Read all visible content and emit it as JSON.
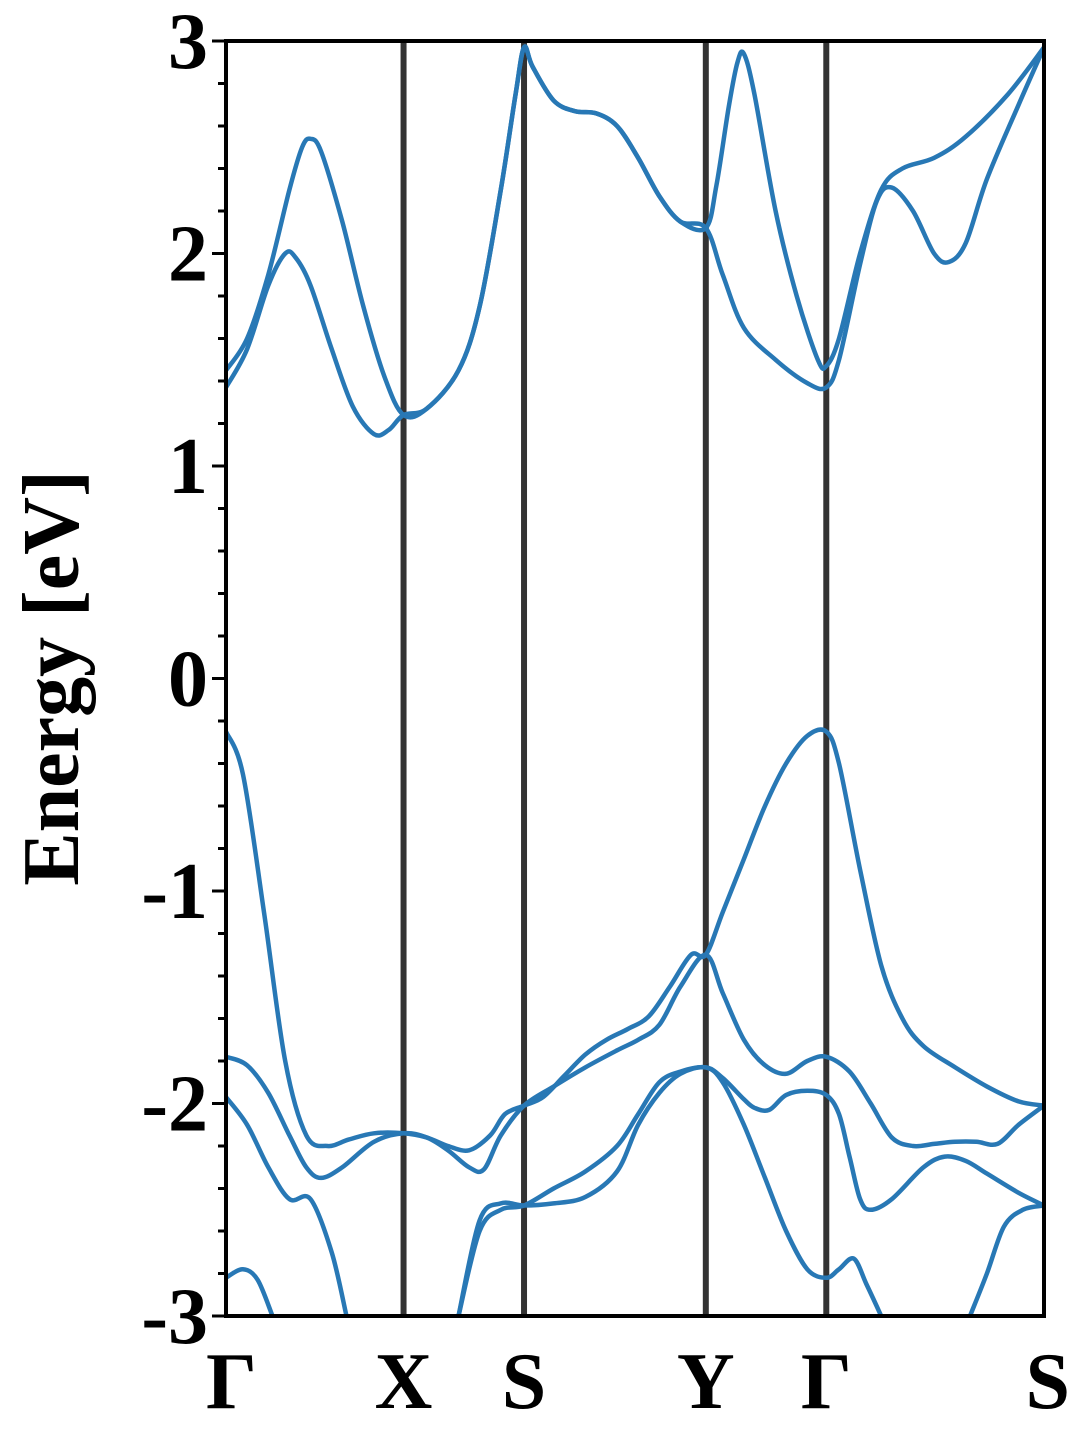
{
  "chart_data": {
    "type": "line",
    "title": "",
    "xlabel": "",
    "ylabel": "Energy [eV]",
    "ylim": [
      -3,
      3
    ],
    "yticks": [
      -3,
      -2,
      -1,
      0,
      1,
      2,
      3
    ],
    "ytick_labels": [
      "-3",
      "-2",
      "-1",
      "0",
      "1",
      "2",
      "3"
    ],
    "xlim": [
      0,
      3.87
    ],
    "kpoints": [
      {
        "label": "Γ",
        "x": 0.0
      },
      {
        "label": "X",
        "x": 0.84
      },
      {
        "label": "S",
        "x": 1.41
      },
      {
        "label": "Y",
        "x": 2.27
      },
      {
        "label": "Γ",
        "x": 2.84
      },
      {
        "label": "S",
        "x": 3.87
      }
    ],
    "grid": false,
    "line_color": "#2878b5",
    "kline_color": "#333333",
    "series": [
      {
        "points": [
          [
            0.0,
            1.45
          ],
          [
            0.1,
            1.6
          ],
          [
            0.2,
            1.9
          ],
          [
            0.3,
            2.3
          ],
          [
            0.36,
            2.5
          ],
          [
            0.4,
            2.54
          ],
          [
            0.45,
            2.48
          ],
          [
            0.55,
            2.15
          ],
          [
            0.65,
            1.75
          ],
          [
            0.75,
            1.42
          ],
          [
            0.84,
            1.24
          ],
          [
            0.95,
            1.27
          ],
          [
            1.1,
            1.45
          ],
          [
            1.2,
            1.75
          ],
          [
            1.3,
            2.3
          ],
          [
            1.37,
            2.75
          ],
          [
            1.41,
            2.97
          ],
          [
            1.45,
            2.88
          ],
          [
            1.55,
            2.72
          ],
          [
            1.65,
            2.67
          ],
          [
            1.75,
            2.66
          ],
          [
            1.85,
            2.6
          ],
          [
            1.95,
            2.45
          ],
          [
            2.05,
            2.27
          ],
          [
            2.15,
            2.15
          ],
          [
            2.27,
            2.12
          ],
          [
            2.32,
            2.32
          ],
          [
            2.38,
            2.7
          ],
          [
            2.42,
            2.9
          ],
          [
            2.45,
            2.94
          ],
          [
            2.5,
            2.75
          ],
          [
            2.6,
            2.2
          ],
          [
            2.7,
            1.8
          ],
          [
            2.8,
            1.5
          ],
          [
            2.84,
            1.47
          ],
          [
            2.9,
            1.6
          ],
          [
            3.0,
            2.0
          ],
          [
            3.1,
            2.3
          ],
          [
            3.2,
            2.4
          ],
          [
            3.35,
            2.45
          ],
          [
            3.5,
            2.55
          ],
          [
            3.7,
            2.75
          ],
          [
            3.87,
            2.97
          ]
        ]
      },
      {
        "points": [
          [
            0.0,
            1.37
          ],
          [
            0.1,
            1.55
          ],
          [
            0.2,
            1.85
          ],
          [
            0.28,
            2.0
          ],
          [
            0.33,
            1.98
          ],
          [
            0.4,
            1.85
          ],
          [
            0.5,
            1.55
          ],
          [
            0.6,
            1.28
          ],
          [
            0.7,
            1.15
          ],
          [
            0.77,
            1.17
          ],
          [
            0.84,
            1.24
          ],
          [
            0.95,
            1.27
          ],
          [
            1.1,
            1.45
          ],
          [
            1.2,
            1.75
          ],
          [
            1.3,
            2.3
          ],
          [
            1.37,
            2.75
          ],
          [
            1.41,
            2.97
          ],
          [
            1.45,
            2.88
          ],
          [
            1.55,
            2.72
          ],
          [
            1.65,
            2.67
          ],
          [
            1.75,
            2.66
          ],
          [
            1.85,
            2.6
          ],
          [
            1.95,
            2.45
          ],
          [
            2.05,
            2.27
          ],
          [
            2.15,
            2.15
          ],
          [
            2.27,
            2.12
          ],
          [
            2.35,
            1.9
          ],
          [
            2.45,
            1.65
          ],
          [
            2.6,
            1.5
          ],
          [
            2.75,
            1.39
          ],
          [
            2.84,
            1.37
          ],
          [
            2.9,
            1.5
          ],
          [
            3.0,
            1.95
          ],
          [
            3.08,
            2.25
          ],
          [
            3.15,
            2.31
          ],
          [
            3.25,
            2.2
          ],
          [
            3.35,
            2.0
          ],
          [
            3.42,
            1.96
          ],
          [
            3.5,
            2.05
          ],
          [
            3.6,
            2.35
          ],
          [
            3.75,
            2.7
          ],
          [
            3.87,
            2.97
          ]
        ]
      },
      {
        "points": [
          [
            0.0,
            -0.25
          ],
          [
            0.08,
            -0.45
          ],
          [
            0.18,
            -1.1
          ],
          [
            0.28,
            -1.8
          ],
          [
            0.38,
            -2.15
          ],
          [
            0.48,
            -2.2
          ],
          [
            0.58,
            -2.17
          ],
          [
            0.7,
            -2.14
          ],
          [
            0.84,
            -2.14
          ],
          [
            0.95,
            -2.16
          ],
          [
            1.05,
            -2.2
          ],
          [
            1.15,
            -2.22
          ],
          [
            1.25,
            -2.15
          ],
          [
            1.32,
            -2.05
          ],
          [
            1.41,
            -2.01
          ],
          [
            1.5,
            -1.97
          ],
          [
            1.6,
            -1.87
          ],
          [
            1.7,
            -1.77
          ],
          [
            1.8,
            -1.7
          ],
          [
            1.9,
            -1.65
          ],
          [
            2.0,
            -1.59
          ],
          [
            2.1,
            -1.45
          ],
          [
            2.2,
            -1.3
          ],
          [
            2.27,
            -1.3
          ],
          [
            2.35,
            -1.1
          ],
          [
            2.45,
            -0.85
          ],
          [
            2.55,
            -0.6
          ],
          [
            2.65,
            -0.4
          ],
          [
            2.75,
            -0.27
          ],
          [
            2.84,
            -0.25
          ],
          [
            2.9,
            -0.4
          ],
          [
            3.0,
            -0.9
          ],
          [
            3.1,
            -1.35
          ],
          [
            3.2,
            -1.6
          ],
          [
            3.3,
            -1.73
          ],
          [
            3.45,
            -1.83
          ],
          [
            3.6,
            -1.92
          ],
          [
            3.75,
            -1.99
          ],
          [
            3.87,
            -2.01
          ]
        ]
      },
      {
        "points": [
          [
            0.0,
            -1.78
          ],
          [
            0.1,
            -1.82
          ],
          [
            0.2,
            -1.95
          ],
          [
            0.3,
            -2.15
          ],
          [
            0.38,
            -2.3
          ],
          [
            0.45,
            -2.35
          ],
          [
            0.55,
            -2.3
          ],
          [
            0.7,
            -2.18
          ],
          [
            0.84,
            -2.14
          ],
          [
            0.95,
            -2.16
          ],
          [
            1.05,
            -2.22
          ],
          [
            1.15,
            -2.3
          ],
          [
            1.22,
            -2.31
          ],
          [
            1.3,
            -2.15
          ],
          [
            1.41,
            -2.01
          ],
          [
            1.55,
            -1.92
          ],
          [
            1.7,
            -1.83
          ],
          [
            1.85,
            -1.75
          ],
          [
            1.95,
            -1.7
          ],
          [
            2.05,
            -1.63
          ],
          [
            2.15,
            -1.45
          ],
          [
            2.27,
            -1.3
          ],
          [
            2.35,
            -1.48
          ],
          [
            2.45,
            -1.7
          ],
          [
            2.55,
            -1.82
          ],
          [
            2.65,
            -1.86
          ],
          [
            2.75,
            -1.8
          ],
          [
            2.84,
            -1.78
          ],
          [
            2.95,
            -1.85
          ],
          [
            3.05,
            -2.0
          ],
          [
            3.15,
            -2.16
          ],
          [
            3.25,
            -2.2
          ],
          [
            3.35,
            -2.19
          ],
          [
            3.45,
            -2.18
          ],
          [
            3.55,
            -2.18
          ],
          [
            3.65,
            -2.19
          ],
          [
            3.75,
            -2.1
          ],
          [
            3.87,
            -2.01
          ]
        ]
      },
      {
        "points": [
          [
            0.0,
            -1.97
          ],
          [
            0.1,
            -2.1
          ],
          [
            0.2,
            -2.3
          ],
          [
            0.3,
            -2.45
          ],
          [
            0.4,
            -2.45
          ],
          [
            0.5,
            -2.7
          ],
          [
            0.57,
            -3.0
          ]
        ]
      },
      {
        "points": [
          [
            1.1,
            -3.0
          ],
          [
            1.2,
            -2.6
          ],
          [
            1.3,
            -2.5
          ],
          [
            1.41,
            -2.48
          ],
          [
            1.55,
            -2.4
          ],
          [
            1.7,
            -2.32
          ],
          [
            1.85,
            -2.2
          ],
          [
            1.95,
            -2.05
          ],
          [
            2.05,
            -1.9
          ],
          [
            2.15,
            -1.85
          ],
          [
            2.27,
            -1.83
          ],
          [
            2.35,
            -1.88
          ],
          [
            2.45,
            -1.98
          ],
          [
            2.5,
            -2.02
          ],
          [
            2.57,
            -2.03
          ],
          [
            2.65,
            -1.96
          ],
          [
            2.75,
            -1.94
          ],
          [
            2.84,
            -1.96
          ],
          [
            2.9,
            -2.05
          ],
          [
            2.95,
            -2.25
          ],
          [
            3.0,
            -2.45
          ],
          [
            3.05,
            -2.5
          ],
          [
            3.15,
            -2.45
          ],
          [
            3.3,
            -2.3
          ],
          [
            3.4,
            -2.25
          ],
          [
            3.5,
            -2.27
          ],
          [
            3.6,
            -2.33
          ],
          [
            3.75,
            -2.42
          ],
          [
            3.87,
            -2.48
          ]
        ]
      },
      {
        "points": [
          [
            0.0,
            -2.82
          ],
          [
            0.08,
            -2.78
          ],
          [
            0.15,
            -2.83
          ],
          [
            0.22,
            -3.0
          ]
        ]
      },
      {
        "points": [
          [
            1.1,
            -3.0
          ],
          [
            1.2,
            -2.55
          ],
          [
            1.3,
            -2.47
          ],
          [
            1.41,
            -2.48
          ],
          [
            1.55,
            -2.47
          ],
          [
            1.7,
            -2.44
          ],
          [
            1.85,
            -2.32
          ],
          [
            1.95,
            -2.1
          ],
          [
            2.05,
            -1.95
          ],
          [
            2.15,
            -1.86
          ],
          [
            2.27,
            -1.83
          ],
          [
            2.35,
            -1.9
          ],
          [
            2.45,
            -2.1
          ],
          [
            2.55,
            -2.35
          ],
          [
            2.65,
            -2.6
          ],
          [
            2.75,
            -2.78
          ],
          [
            2.84,
            -2.82
          ],
          [
            2.9,
            -2.78
          ],
          [
            2.97,
            -2.73
          ],
          [
            3.03,
            -2.85
          ],
          [
            3.1,
            -3.0
          ]
        ]
      },
      {
        "points": [
          [
            3.52,
            -3.0
          ],
          [
            3.6,
            -2.8
          ],
          [
            3.68,
            -2.58
          ],
          [
            3.77,
            -2.5
          ],
          [
            3.87,
            -2.48
          ]
        ]
      }
    ]
  }
}
